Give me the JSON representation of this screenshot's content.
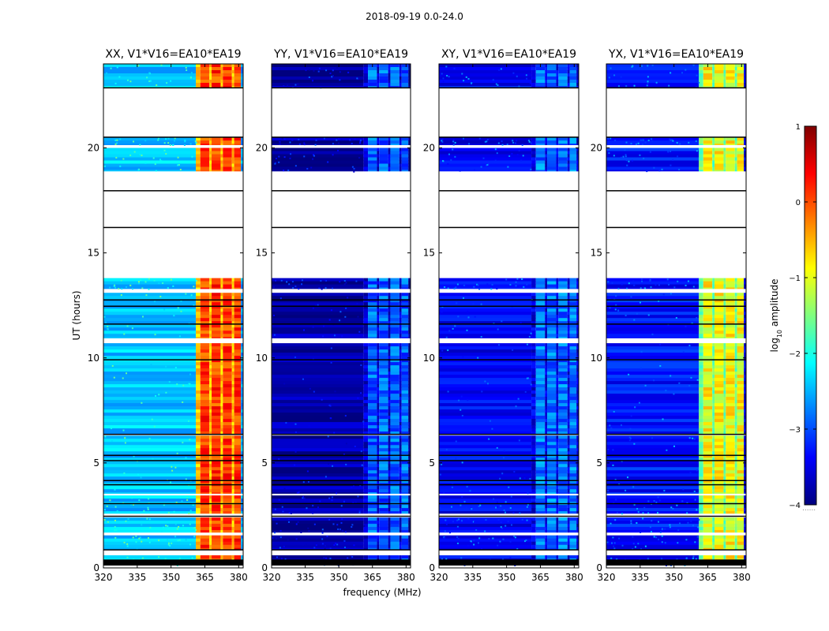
{
  "figure": {
    "suptitle": "2018-09-19 0.0-24.0"
  },
  "chart_data": {
    "type": "heatmap",
    "title": "2018-09-19 0.0-24.0",
    "xlabel": "frequency (MHz)",
    "ylabel": "UT (hours)",
    "xlim": [
      320,
      382
    ],
    "ylim": [
      0,
      24
    ],
    "x_ticks": [
      320,
      335,
      350,
      365,
      380
    ],
    "y_ticks": [
      0,
      5,
      10,
      15,
      20
    ],
    "colorbar": {
      "label_prefix": "log",
      "label_sub": "10",
      "label_suffix": " amplitude",
      "range": [
        -4,
        1
      ],
      "ticks": [
        "1",
        "0",
        "−1",
        "−2",
        "−3",
        "−4"
      ],
      "tick_values": [
        1,
        0,
        -1,
        -2,
        -3,
        -4
      ],
      "colormap": "jet",
      "extra": "......"
    },
    "colormap_stops": [
      "#00007f",
      "#0000ff",
      "#007fff",
      "#00ffff",
      "#7fff7f",
      "#ffff00",
      "#ff7f00",
      "#ff0000",
      "#7f0000"
    ],
    "flag_color": "#000000",
    "gap_color": "#ffffff",
    "panels": [
      {
        "title": "XX, V1*V16=EA10*EA19",
        "baseline": -2.4,
        "band": 0.1
      },
      {
        "title": "YY, V1*V16=EA10*EA19",
        "baseline": -3.8,
        "band": -2.9
      },
      {
        "title": "XY, V1*V16=EA10*EA19",
        "baseline": -3.4,
        "band": -2.8
      },
      {
        "title": "YX, V1*V16=EA10*EA19",
        "baseline": -3.3,
        "band": -0.9
      }
    ],
    "rfi_band": {
      "start": 361,
      "end": 381
    },
    "rfi_stripes": [
      [
        361,
        363,
        "low"
      ],
      [
        363,
        367,
        "high"
      ],
      [
        367,
        368,
        "low"
      ],
      [
        368,
        372,
        "high"
      ],
      [
        372,
        373,
        "low"
      ],
      [
        373,
        377,
        "high"
      ],
      [
        377,
        378,
        "low"
      ],
      [
        378,
        381,
        "high"
      ]
    ],
    "data_segments": [
      [
        0.15,
        0.6
      ],
      [
        0.9,
        1.55
      ],
      [
        1.7,
        2.4
      ],
      [
        2.6,
        3.45
      ],
      [
        3.55,
        6.3
      ],
      [
        6.35,
        10.7
      ],
      [
        10.95,
        13.1
      ],
      [
        13.3,
        13.8
      ],
      [
        18.9,
        20.0
      ],
      [
        20.15,
        20.5
      ],
      [
        22.9,
        24.0
      ]
    ],
    "flag_rows": [
      0.85,
      2.45,
      3.05,
      3.95,
      4.15,
      5.35,
      5.1,
      6.35,
      9.9,
      11.6,
      12.45,
      12.75,
      17.95,
      16.2,
      22.85,
      20.5
    ]
  }
}
